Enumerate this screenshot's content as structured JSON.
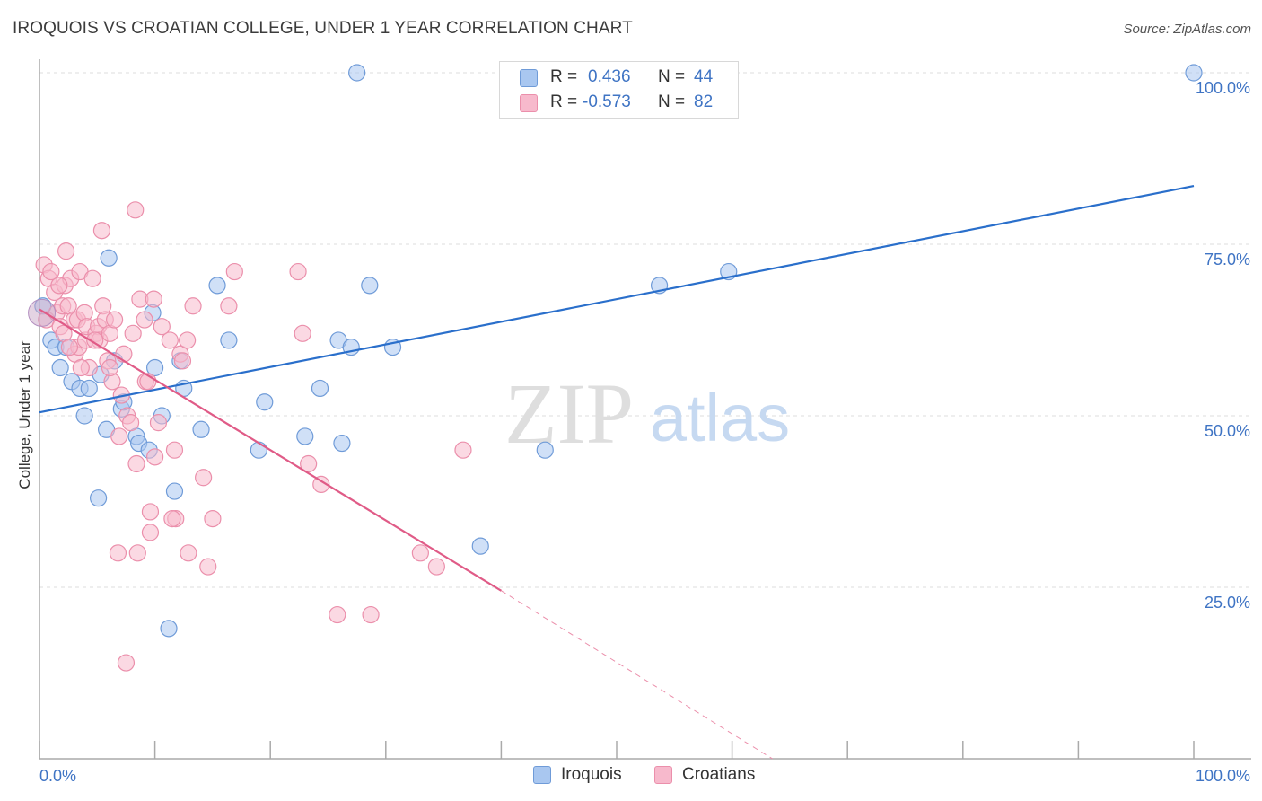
{
  "title": "IROQUOIS VS CROATIAN COLLEGE, UNDER 1 YEAR CORRELATION CHART",
  "source": "Source: ZipAtlas.com",
  "watermark": {
    "zip": "ZIP",
    "atlas": "atlas"
  },
  "legend_top": {
    "rows": [
      {
        "r_label": "R =",
        "r_value": "0.436",
        "n_label": "N =",
        "n_value": "44",
        "color": "#a9c7f0"
      },
      {
        "r_label": "R =",
        "r_value": "-0.573",
        "n_label": "N =",
        "n_value": "82",
        "color": "#f7b9cc"
      }
    ]
  },
  "legend_bottom": [
    {
      "label": "Iroquois",
      "color": "#a9c7f0"
    },
    {
      "label": "Croatians",
      "color": "#f7b9cc"
    }
  ],
  "chart_data": {
    "type": "scatter",
    "title": "IROQUOIS VS CROATIAN COLLEGE, UNDER 1 YEAR CORRELATION CHART",
    "xlabel": "",
    "ylabel": "College, Under 1 year",
    "xlim": [
      0,
      100
    ],
    "ylim": [
      0,
      100
    ],
    "x_tick_labels": [
      "0.0%",
      "100.0%"
    ],
    "y_tick_labels": [
      "100.0%",
      "75.0%",
      "50.0%",
      "25.0%"
    ],
    "y_ticks": [
      100,
      75,
      50,
      25
    ],
    "series": [
      {
        "name": "Iroquois",
        "color": "#a9c7f0",
        "stroke": "#6f9bd8",
        "trend_color": "#2a6fcb",
        "trend": {
          "x0": 0,
          "y0": 50.5,
          "x1": 100,
          "y1": 83.5
        },
        "points": [
          [
            0.3,
            66
          ],
          [
            1,
            61
          ],
          [
            1.4,
            60
          ],
          [
            1.8,
            57
          ],
          [
            2.3,
            60
          ],
          [
            2.8,
            55
          ],
          [
            3.5,
            54
          ],
          [
            3.9,
            50
          ],
          [
            4.3,
            54
          ],
          [
            5.1,
            38
          ],
          [
            5.3,
            56
          ],
          [
            5.8,
            48
          ],
          [
            6,
            73
          ],
          [
            6.5,
            58
          ],
          [
            7.1,
            51
          ],
          [
            7.3,
            52
          ],
          [
            8.4,
            47
          ],
          [
            8.6,
            46
          ],
          [
            9.5,
            45
          ],
          [
            9.8,
            65
          ],
          [
            10,
            57
          ],
          [
            10.6,
            50
          ],
          [
            11.7,
            39
          ],
          [
            11.2,
            19
          ],
          [
            12.2,
            58
          ],
          [
            12.5,
            54
          ],
          [
            14,
            48
          ],
          [
            15.4,
            69
          ],
          [
            16.4,
            61
          ],
          [
            19,
            45
          ],
          [
            19.5,
            52
          ],
          [
            23,
            47
          ],
          [
            24.3,
            54
          ],
          [
            25.9,
            61
          ],
          [
            26.2,
            46
          ],
          [
            27,
            60
          ],
          [
            27.5,
            100
          ],
          [
            28.6,
            69
          ],
          [
            30.6,
            60
          ],
          [
            38.2,
            31
          ],
          [
            43.8,
            45
          ],
          [
            53.7,
            69
          ],
          [
            59.7,
            71
          ],
          [
            100,
            100
          ]
        ]
      },
      {
        "name": "Croatians",
        "color": "#f7b9cc",
        "stroke": "#eb8fab",
        "trend_color": "#e05b87",
        "trend": {
          "x0": 0,
          "y0": 65.5,
          "x1": 40,
          "y1": 24.5
        },
        "trend_dashed": {
          "x0": 40,
          "y0": 24.5,
          "x1": 63.5,
          "y1": 0
        },
        "points": [
          [
            0.4,
            72
          ],
          [
            0.6,
            64
          ],
          [
            0.8,
            70
          ],
          [
            1,
            71
          ],
          [
            1.3,
            68
          ],
          [
            1.5,
            65
          ],
          [
            1.8,
            63
          ],
          [
            2,
            66
          ],
          [
            2.1,
            62
          ],
          [
            2.2,
            69
          ],
          [
            2.3,
            74
          ],
          [
            2.5,
            66
          ],
          [
            2.7,
            70
          ],
          [
            3,
            64
          ],
          [
            3.1,
            59
          ],
          [
            3.3,
            64
          ],
          [
            3.4,
            60
          ],
          [
            3.5,
            71
          ],
          [
            3.9,
            65
          ],
          [
            4,
            61
          ],
          [
            4.1,
            63
          ],
          [
            4.3,
            57
          ],
          [
            4.6,
            70
          ],
          [
            4.9,
            62
          ],
          [
            5.1,
            63
          ],
          [
            5.2,
            61
          ],
          [
            5.4,
            77
          ],
          [
            5.5,
            66
          ],
          [
            5.7,
            64
          ],
          [
            5.9,
            58
          ],
          [
            6.1,
            62
          ],
          [
            6.3,
            55
          ],
          [
            6.5,
            64
          ],
          [
            6.9,
            47
          ],
          [
            6.8,
            30
          ],
          [
            7.1,
            53
          ],
          [
            7.3,
            59
          ],
          [
            7.6,
            50
          ],
          [
            7.9,
            49
          ],
          [
            8.1,
            62
          ],
          [
            8.3,
            80
          ],
          [
            8.4,
            43
          ],
          [
            8.5,
            30
          ],
          [
            8.7,
            67
          ],
          [
            9.1,
            64
          ],
          [
            9.2,
            55
          ],
          [
            9.4,
            55
          ],
          [
            9.6,
            33
          ],
          [
            9.6,
            36
          ],
          [
            9.9,
            67
          ],
          [
            10,
            44
          ],
          [
            10.3,
            49
          ],
          [
            10.6,
            63
          ],
          [
            11.3,
            61
          ],
          [
            11.7,
            45
          ],
          [
            11.8,
            35
          ],
          [
            11.5,
            35
          ],
          [
            12.2,
            59
          ],
          [
            12.8,
            61
          ],
          [
            12.9,
            30
          ],
          [
            13.3,
            66
          ],
          [
            14.2,
            41
          ],
          [
            14.6,
            28
          ],
          [
            15,
            35
          ],
          [
            16.4,
            66
          ],
          [
            16.9,
            71
          ],
          [
            22.4,
            71
          ],
          [
            22.8,
            62
          ],
          [
            23.3,
            43
          ],
          [
            24.4,
            40
          ],
          [
            25.8,
            21
          ],
          [
            28.7,
            21
          ],
          [
            33,
            30
          ],
          [
            34.4,
            28
          ],
          [
            36.7,
            45
          ],
          [
            7.5,
            14
          ],
          [
            3.6,
            57
          ],
          [
            4.8,
            61
          ],
          [
            1.7,
            69
          ],
          [
            12.4,
            58
          ],
          [
            6.1,
            57
          ],
          [
            2.6,
            60
          ]
        ]
      }
    ]
  }
}
